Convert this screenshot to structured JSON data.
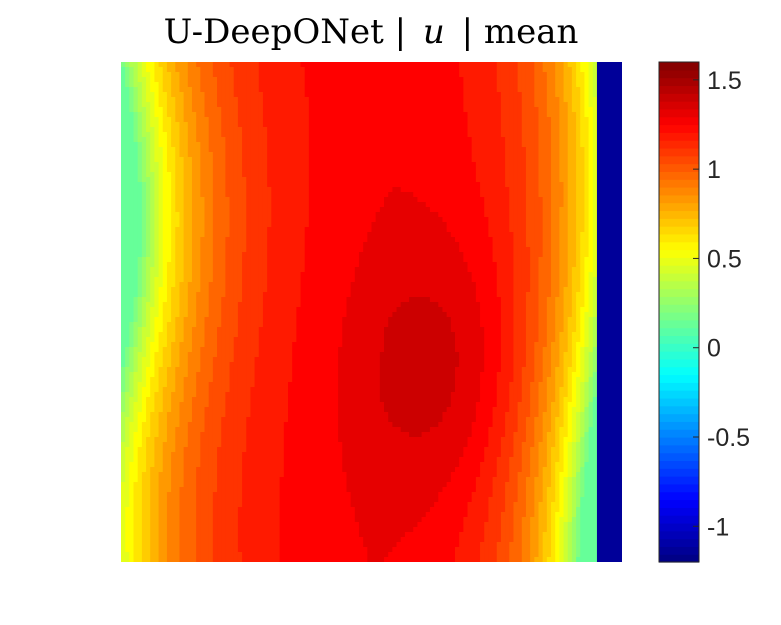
{
  "chart_data": {
    "type": "heatmap",
    "title_parts": {
      "prefix": "U-DeepONet |",
      "variable": "u",
      "suffix": "| mean"
    },
    "colormap": "jet",
    "color_limits": [
      -1.2,
      1.6
    ],
    "colorbar": {
      "position": "right",
      "ticks": [
        {
          "value": 1.5,
          "label": "1.5"
        },
        {
          "value": 1,
          "label": "1"
        },
        {
          "value": 0.5,
          "label": "0.5"
        },
        {
          "value": 0,
          "label": "0"
        },
        {
          "value": -0.5,
          "label": "-0.5"
        },
        {
          "value": -1,
          "label": "-1"
        }
      ]
    },
    "axes_visible": false,
    "field_description_values": {
      "left_wall_value": 0.15,
      "right_wall_value": -1.15,
      "peak_value": 1.45,
      "core_value": 1.3,
      "upper_band_value": 1.25
    }
  }
}
